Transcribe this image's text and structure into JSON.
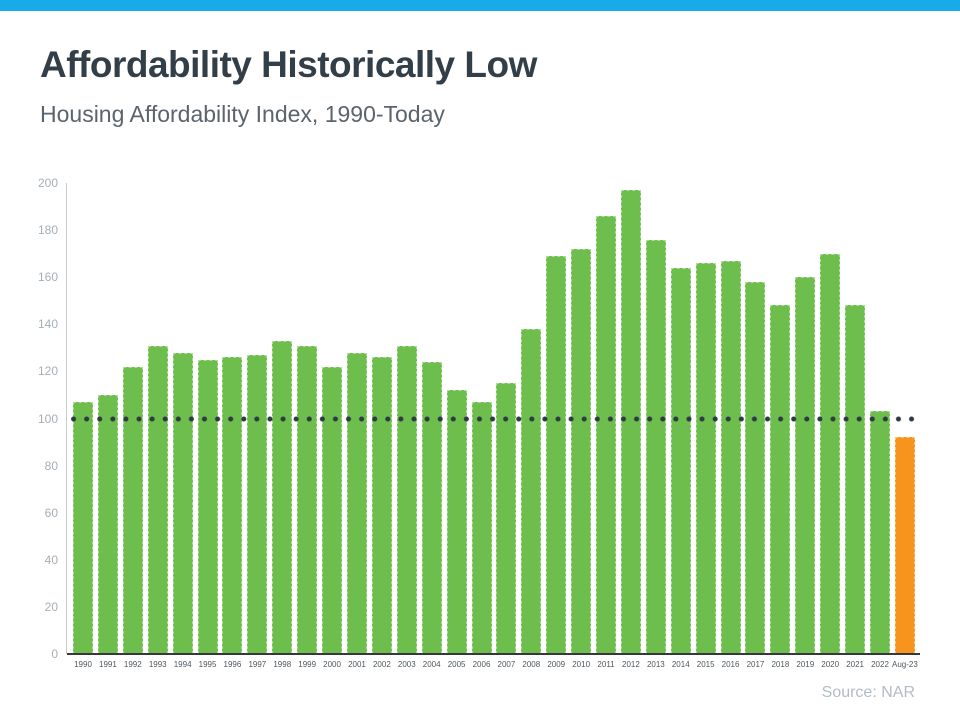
{
  "page": {
    "accent_bar_color": "#18ABEA",
    "background_color": "#FFFFFF"
  },
  "header": {
    "title": "Affordability Historically Low",
    "subtitle": "Housing Affordability Index, 1990-Today"
  },
  "footer": {
    "source": "Source: NAR"
  },
  "chart_data": {
    "type": "bar",
    "title": "Housing Affordability Index, 1990-Today",
    "categories": [
      "1990",
      "1991",
      "1992",
      "1993",
      "1994",
      "1995",
      "1996",
      "1997",
      "1998",
      "1999",
      "2000",
      "2001",
      "2002",
      "2003",
      "2004",
      "2005",
      "2006",
      "2007",
      "2008",
      "2009",
      "2010",
      "2011",
      "2012",
      "2013",
      "2014",
      "2015",
      "2016",
      "2017",
      "2018",
      "2019",
      "2020",
      "2021",
      "2022",
      "Aug-23"
    ],
    "values": [
      107,
      110,
      122,
      131,
      128,
      125,
      126,
      127,
      133,
      131,
      122,
      128,
      126,
      131,
      124,
      112,
      107,
      115,
      138,
      169,
      172,
      186,
      197,
      176,
      164,
      166,
      167,
      158,
      148,
      160,
      170,
      148,
      103,
      92
    ],
    "highlight_category": "Aug-23",
    "highlight_index": 33,
    "bar_color": "#6DBE4D",
    "highlight_color": "#F7941D",
    "ylim": [
      0,
      200
    ],
    "yticks": [
      0,
      20,
      40,
      60,
      80,
      100,
      120,
      140,
      160,
      180,
      200
    ],
    "benchmark_line": {
      "value": 100,
      "style": "dotted",
      "color": "#2E3A45"
    },
    "grid": false,
    "legend": false,
    "xlabel": "",
    "ylabel": ""
  }
}
